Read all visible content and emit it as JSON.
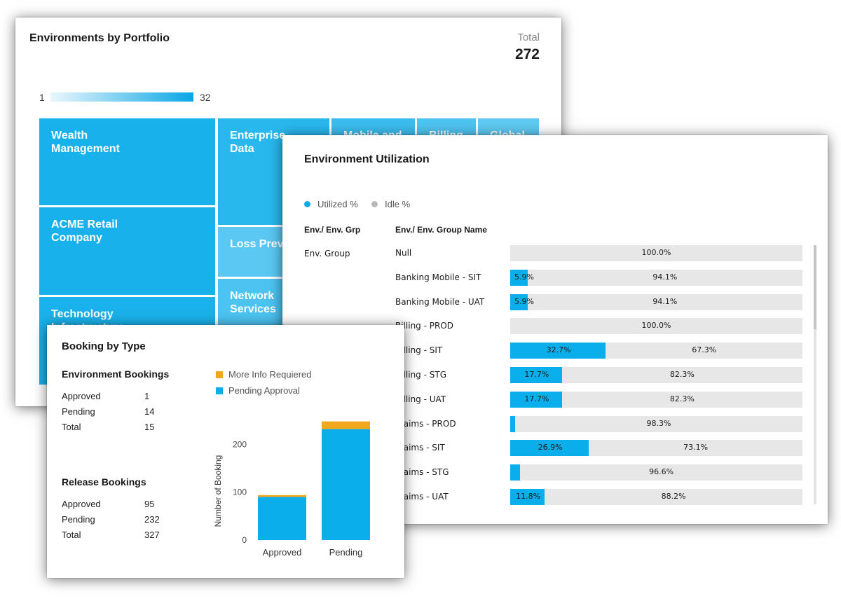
{
  "portfolio": {
    "title": "Environments by Portfolio",
    "total_label": "Total",
    "total_value": "272",
    "legend_min": "1",
    "legend_max": "32",
    "tiles": [
      {
        "label": "Wealth\nManagement",
        "color": "#19b1ec"
      },
      {
        "label": "ACME Retail\nCompany",
        "color": "#19b1ec"
      },
      {
        "label": "Technology\nInfrastructure",
        "color": "#1ab2ec"
      },
      {
        "label": "Enterprise\nData",
        "color": "#29b8ee"
      },
      {
        "label": "Loss Prevention",
        "color": "#5ac8f2"
      },
      {
        "label": "Network\nServices",
        "color": "#4cc3f1"
      },
      {
        "label": "Mobile and",
        "color": "#3bbdef"
      },
      {
        "label": "Billing",
        "color": "#4ec4f1"
      },
      {
        "label": "Global",
        "color": "#5fcaf2"
      }
    ]
  },
  "utilization": {
    "title": "Environment Utilization",
    "legend": [
      {
        "label": "Utilized %",
        "color": "#0aaeeb"
      },
      {
        "label": "Idle %",
        "color": "#b9b9b9"
      }
    ],
    "col_group": "Env./ Env. Grp",
    "col_name": "Env./ Env. Group Name",
    "group_label": "Env. Group",
    "rows": [
      {
        "name": "Null",
        "utilized": 0,
        "utilized_label": "",
        "idle_label": "100.0%"
      },
      {
        "name": "Banking Mobile - SIT",
        "utilized": 5.9,
        "utilized_label": "5.9%",
        "idle_label": "94.1%"
      },
      {
        "name": "Banking Mobile - UAT",
        "utilized": 5.9,
        "utilized_label": "5.9%",
        "idle_label": "94.1%"
      },
      {
        "name": "Billing - PROD",
        "utilized": 0,
        "utilized_label": "",
        "idle_label": "100.0%"
      },
      {
        "name": "Billing - SIT",
        "utilized": 32.7,
        "utilized_label": "32.7%",
        "idle_label": "67.3%"
      },
      {
        "name": "Billing - STG",
        "utilized": 17.7,
        "utilized_label": "17.7%",
        "idle_label": "82.3%"
      },
      {
        "name": "Billing - UAT",
        "utilized": 17.7,
        "utilized_label": "17.7%",
        "idle_label": "82.3%"
      },
      {
        "name": "Claims - PROD",
        "utilized": 1.7,
        "utilized_label": "",
        "idle_label": "98.3%"
      },
      {
        "name": "Claims - SIT",
        "utilized": 26.9,
        "utilized_label": "26.9%",
        "idle_label": "73.1%"
      },
      {
        "name": "Claims - STG",
        "utilized": 3.4,
        "utilized_label": "",
        "idle_label": "96.6%"
      },
      {
        "name": "Claims - UAT",
        "utilized": 11.8,
        "utilized_label": "11.8%",
        "idle_label": "88.2%"
      }
    ]
  },
  "booking": {
    "title": "Booking by Type",
    "env_title": "Environment Bookings",
    "env_rows": [
      {
        "k": "Approved",
        "v": "1"
      },
      {
        "k": "Pending",
        "v": "14"
      },
      {
        "k": "Total",
        "v": "15"
      }
    ],
    "rel_title": "Release Bookings",
    "rel_rows": [
      {
        "k": "Approved",
        "v": "95"
      },
      {
        "k": "Pending",
        "v": "232"
      },
      {
        "k": "Total",
        "v": "327"
      }
    ],
    "legend": [
      {
        "label": "More Info Requiered",
        "color": "#f2a81d"
      },
      {
        "label": "Pending Approval",
        "color": "#0aaeeb"
      }
    ]
  },
  "chart_data": [
    {
      "type": "bar",
      "stacked": true,
      "title": "Booking by Type",
      "categories": [
        "Approved",
        "Pending"
      ],
      "series": [
        {
          "name": "Pending Approval",
          "values": [
            90,
            232
          ]
        },
        {
          "name": "More Info Requiered",
          "values": [
            4,
            16
          ]
        }
      ],
      "xlabel": "",
      "ylabel": "Number of Booking",
      "yticks": [
        0,
        100,
        200
      ],
      "ylim": [
        0,
        250
      ]
    },
    {
      "type": "bar",
      "orientation": "horizontal",
      "stacked": true,
      "title": "Environment Utilization",
      "categories": [
        "Null",
        "Banking Mobile - SIT",
        "Banking Mobile - UAT",
        "Billing - PROD",
        "Billing - SIT",
        "Billing - STG",
        "Billing - UAT",
        "Claims - PROD",
        "Claims - SIT",
        "Claims - STG",
        "Claims - UAT"
      ],
      "series": [
        {
          "name": "Utilized %",
          "values": [
            0,
            5.9,
            5.9,
            0,
            32.7,
            17.7,
            17.7,
            1.7,
            26.9,
            3.4,
            11.8
          ]
        },
        {
          "name": "Idle %",
          "values": [
            100.0,
            94.1,
            94.1,
            100.0,
            67.3,
            82.3,
            82.3,
            98.3,
            73.1,
            96.6,
            88.2
          ]
        }
      ],
      "xlim": [
        0,
        100
      ]
    }
  ]
}
